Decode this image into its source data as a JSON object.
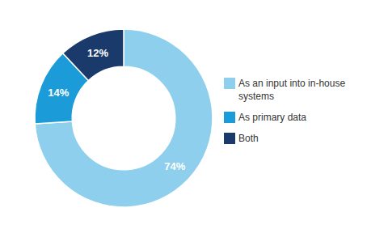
{
  "chart_data": {
    "type": "donut",
    "categories": [
      "As an input into in-house\nsystems",
      "As primary data",
      "Both"
    ],
    "values": [
      74,
      14,
      12
    ],
    "value_labels": [
      "74%",
      "14%",
      "12%"
    ],
    "colors": [
      "#8dcfec",
      "#1b9cd8",
      "#1a3a6b"
    ],
    "data_labels": true,
    "legend": "right"
  }
}
